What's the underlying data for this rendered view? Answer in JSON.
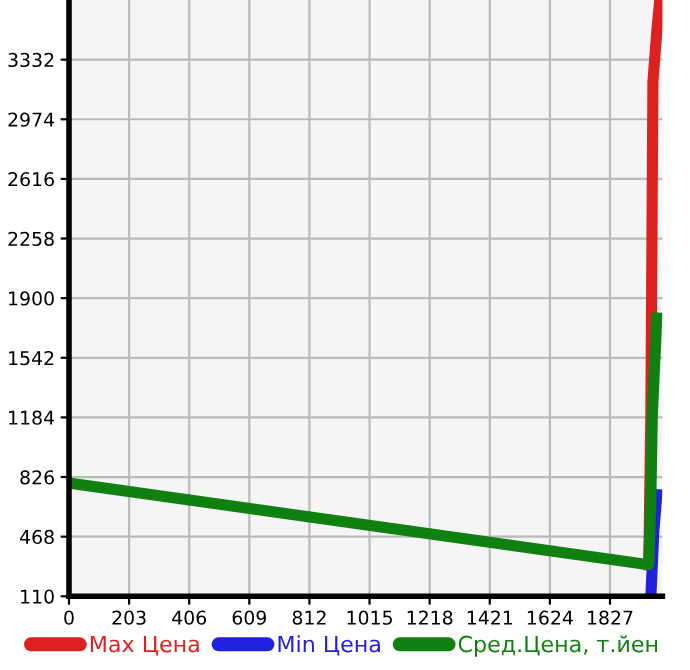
{
  "chart_data": {
    "type": "line",
    "xlim": [
      0,
      2004
    ],
    "ylim": [
      110,
      3690
    ],
    "xticks": [
      0,
      203,
      406,
      609,
      812,
      1015,
      1218,
      1421,
      1624,
      1827
    ],
    "yticks": [
      110,
      468,
      826,
      1184,
      1542,
      1900,
      2258,
      2616,
      2974,
      3332
    ],
    "grid": true,
    "legend": "bottom",
    "marker": "none",
    "line_style": "solid",
    "series": [
      {
        "name": "Max Цена",
        "color": "#dd2020",
        "x": [
          1958,
          1965,
          1972,
          1985,
          1995
        ],
        "values": [
          300,
          1200,
          3200,
          3500,
          3690
        ]
      },
      {
        "name": "Min Цена",
        "color": "#2020dd",
        "x": [
          1965,
          1970,
          1975,
          1985
        ],
        "values": [
          110,
          300,
          500,
          720
        ]
      },
      {
        "name": "Сред.Цена, т.йен",
        "color": "#108010",
        "x": [
          0,
          1958,
          1965,
          1970,
          1985
        ],
        "values": [
          790,
          300,
          700,
          1200,
          1780
        ]
      }
    ]
  }
}
